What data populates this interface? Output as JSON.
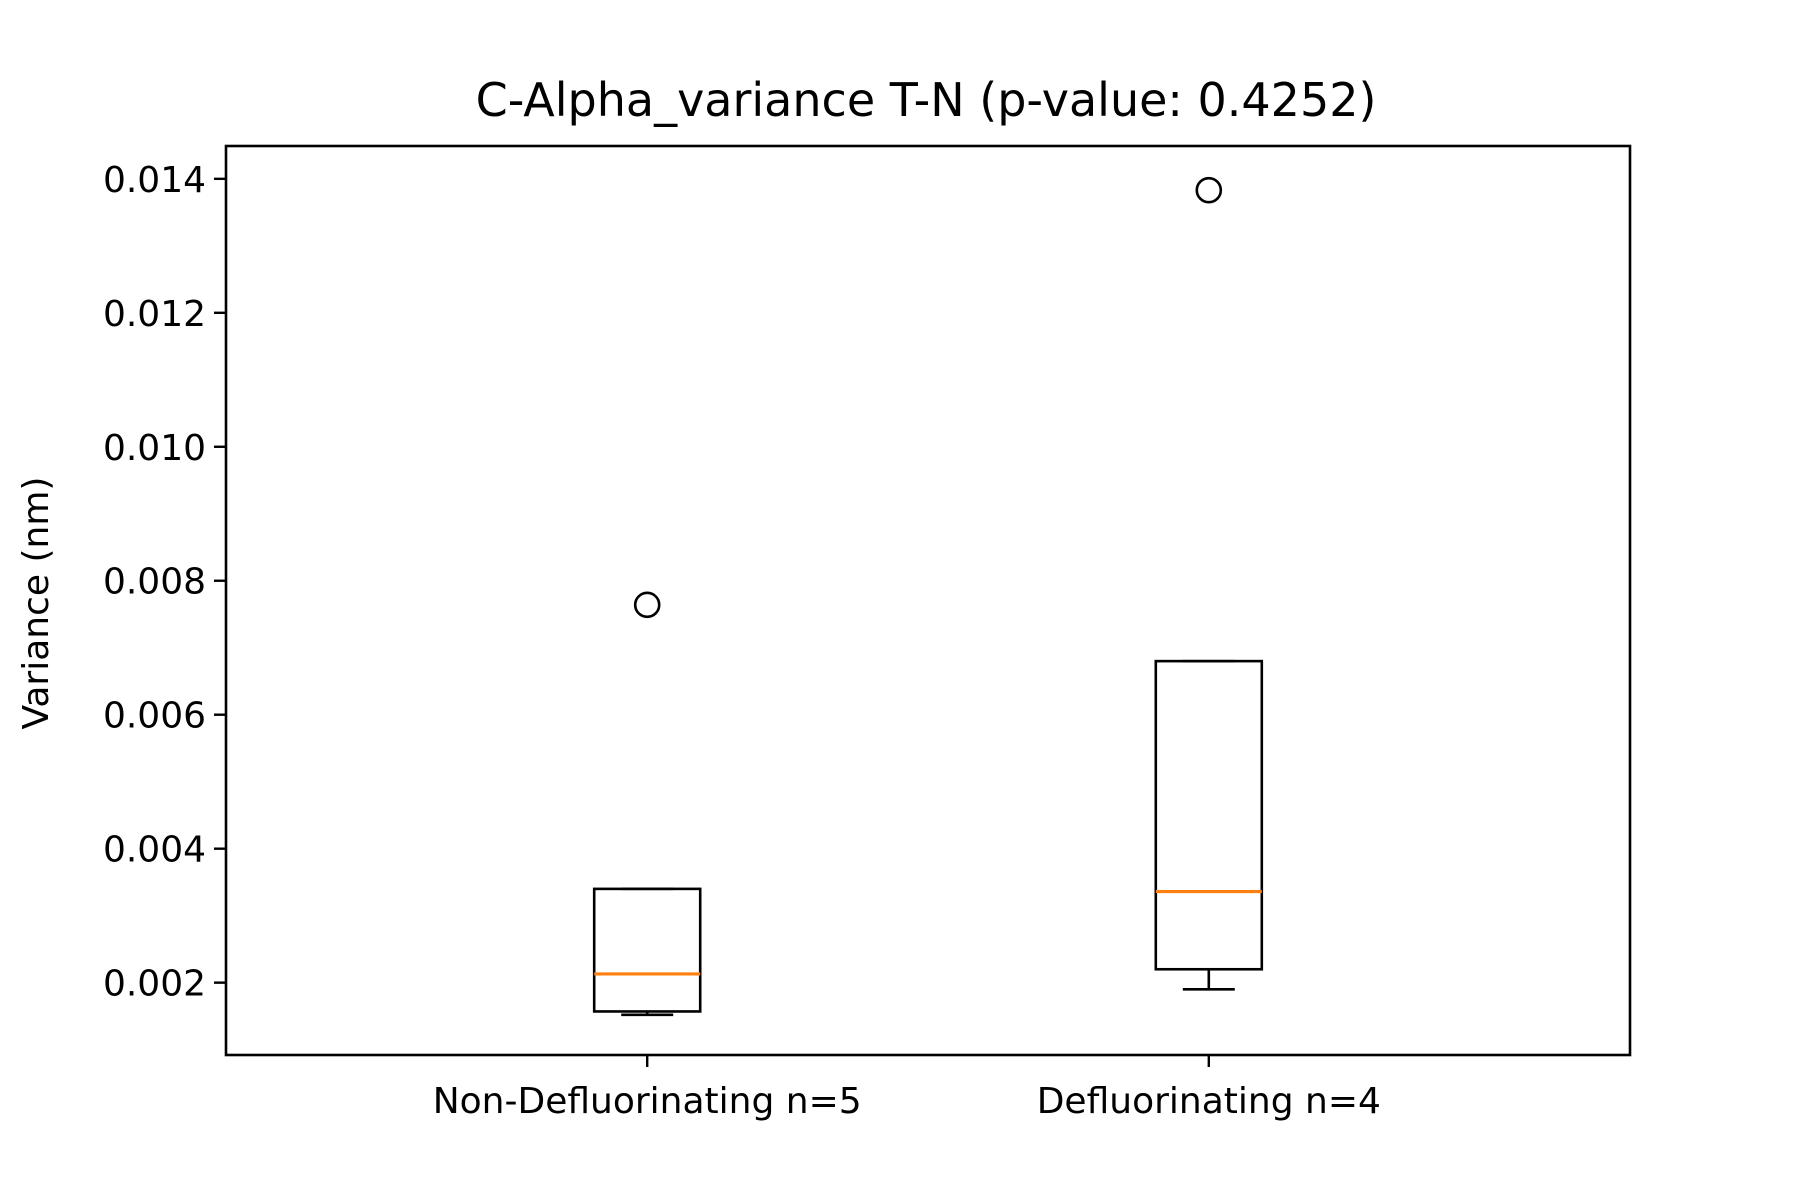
{
  "chart_data": {
    "type": "box",
    "title": "C-Alpha_variance T-N (p-value: 0.4252)",
    "xlabel": "",
    "ylabel": "Variance (nm)",
    "ylim": [
      0.00092,
      0.01449
    ],
    "yticks": [
      0.002,
      0.004,
      0.006,
      0.008,
      0.01,
      0.012,
      0.014
    ],
    "ytick_labels": [
      "0.002",
      "0.004",
      "0.006",
      "0.008",
      "0.010",
      "0.012",
      "0.014"
    ],
    "grid": false,
    "colors": {
      "box": "#000000",
      "median": "#ff7f0e",
      "background": "#ffffff"
    },
    "categories": [
      "Non-Defluorinating n=5",
      "Defluorinating n=4"
    ],
    "boxes": [
      {
        "label": "Non-Defluorinating n=5",
        "whisker_low": 0.00152,
        "q1": 0.00157,
        "median": 0.00213,
        "q3": 0.0034,
        "whisker_high": 0.0034,
        "outliers": [
          0.00764
        ]
      },
      {
        "label": "Defluorinating n=4",
        "whisker_low": 0.0019,
        "q1": 0.0022,
        "median": 0.00336,
        "q3": 0.0068,
        "whisker_high": 0.0068,
        "outliers": [
          0.01383
        ]
      }
    ]
  }
}
